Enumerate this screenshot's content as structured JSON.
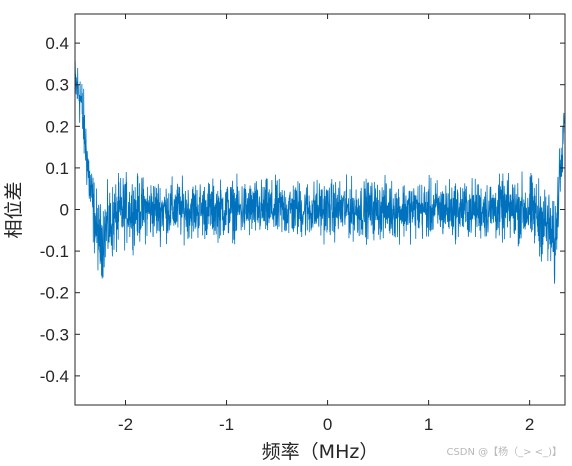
{
  "chart_data": {
    "type": "line",
    "xlabel": "频率（MHz）",
    "ylabel": "相位差",
    "xlim": [
      -2.5,
      2.35
    ],
    "ylim": [
      -0.47,
      0.47
    ],
    "xticks": [
      -2,
      -1,
      0,
      1,
      2
    ],
    "yticks": [
      0.4,
      0.3,
      0.2,
      0.1,
      0,
      -0.1,
      -0.2,
      -0.3,
      -0.4
    ],
    "xtick_labels": [
      "-2",
      "-1",
      "0",
      "1",
      "2"
    ],
    "ytick_labels": [
      "0.4",
      "0.3",
      "0.2",
      "0.1",
      "0",
      "-0.1",
      "-0.2",
      "-0.3",
      "-0.4"
    ],
    "grid": false,
    "series": [
      {
        "color": "#0072BD",
        "x": [
          -2.5,
          -2.45,
          -2.4,
          -2.35,
          -2.3,
          -2.25,
          -2.2,
          -2.1,
          -2.0,
          -1.8,
          -1.5,
          -1.0,
          -0.5,
          0,
          0.5,
          1.0,
          1.5,
          1.8,
          2.0,
          2.1,
          2.2,
          2.25,
          2.3,
          2.35
        ],
        "y_center": [
          0.3,
          0.28,
          0.17,
          0.05,
          -0.03,
          -0.08,
          -0.05,
          -0.02,
          0,
          0,
          0,
          0,
          0,
          0,
          0,
          0,
          0,
          0,
          0,
          -0.02,
          -0.05,
          -0.1,
          0.1,
          0.25
        ],
        "noise_amplitude": [
          0.1,
          0.12,
          0.12,
          0.12,
          0.13,
          0.13,
          0.13,
          0.13,
          0.12,
          0.11,
          0.1,
          0.1,
          0.1,
          0.1,
          0.1,
          0.1,
          0.1,
          0.11,
          0.12,
          0.13,
          0.14,
          0.14,
          0.12,
          0.1
        ]
      }
    ]
  },
  "watermark": "CSDN @【杨（_> <_)】"
}
